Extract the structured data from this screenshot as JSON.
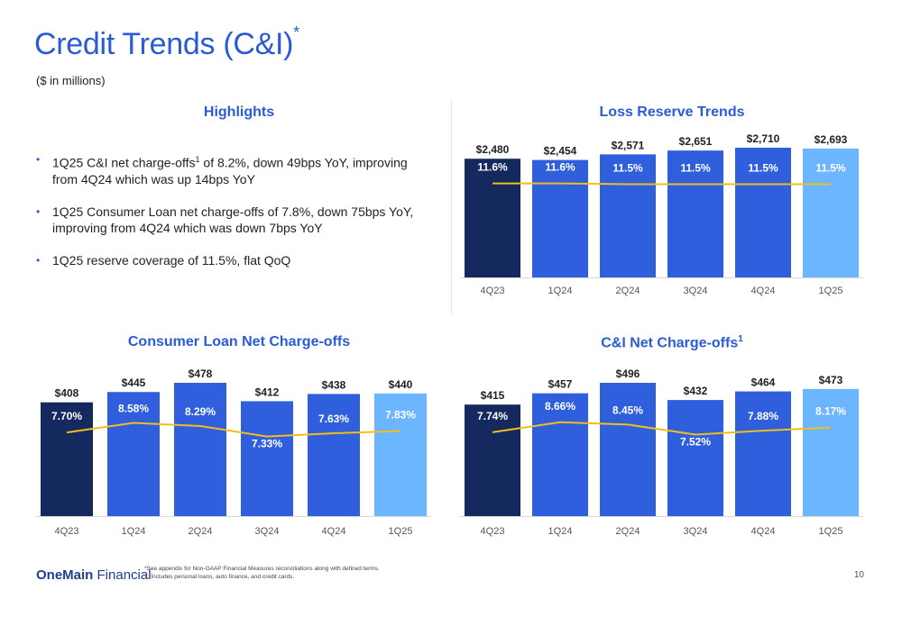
{
  "header": {
    "title": "Credit Trends (C&I)",
    "title_sup": "*",
    "subtitle": "($ in millions)"
  },
  "highlights": {
    "heading": "Highlights",
    "items": [
      {
        "pre": "1Q25 C&I net charge-offs",
        "sup": "1",
        "post": " of 8.2%, down 49bps YoY, improving from 4Q24 which was up 14bps YoY"
      },
      {
        "pre": "1Q25 Consumer Loan net charge-offs of 7.8%, down 75bps YoY, improving from 4Q24 which was down 7bps YoY",
        "sup": "",
        "post": ""
      },
      {
        "pre": "1Q25 reserve coverage of 11.5%, flat QoQ",
        "sup": "",
        "post": ""
      }
    ]
  },
  "colors": {
    "accent": "#2a5bd7",
    "bar_dark": "#14295e",
    "bar_mid": "#2f5fdc",
    "bar_light": "#6cb6ff",
    "line": "#f2be1a"
  },
  "chart_data": [
    {
      "id": "loss-reserve",
      "type": "bar",
      "title": "Loss Reserve Trends",
      "title_sup": "",
      "categories": [
        "4Q23",
        "1Q24",
        "2Q24",
        "3Q24",
        "4Q24",
        "1Q25"
      ],
      "values": [
        2480,
        2454,
        2571,
        2651,
        2710,
        2693
      ],
      "value_labels": [
        "$2,480",
        "$2,454",
        "$2,571",
        "$2,651",
        "$2,710",
        "$2,693"
      ],
      "ylim": [
        0,
        2710
      ],
      "line_series": {
        "values": [
          11.6,
          11.6,
          11.5,
          11.5,
          11.5,
          11.5
        ],
        "labels": [
          "11.6%",
          "11.6%",
          "11.5%",
          "11.5%",
          "11.5%",
          "11.5%"
        ],
        "ylim": [
          0,
          16
        ]
      }
    },
    {
      "id": "consumer-loan",
      "type": "bar",
      "title": "Consumer Loan Net Charge-offs",
      "title_sup": "",
      "categories": [
        "4Q23",
        "1Q24",
        "2Q24",
        "3Q24",
        "4Q24",
        "1Q25"
      ],
      "values": [
        408,
        445,
        478,
        412,
        438,
        440
      ],
      "value_labels": [
        "$408",
        "$445",
        "$478",
        "$412",
        "$438",
        "$440"
      ],
      "ylim": [
        0,
        478
      ],
      "line_series": {
        "values": [
          7.7,
          8.58,
          8.29,
          7.33,
          7.63,
          7.83
        ],
        "labels": [
          "7.70%",
          "8.58%",
          "8.29%",
          "7.33%",
          "7.63%",
          "7.83%"
        ],
        "ylim": [
          0,
          12.27
        ]
      }
    },
    {
      "id": "ci-net",
      "type": "bar",
      "title": "C&I Net Charge-offs",
      "title_sup": "1",
      "categories": [
        "4Q23",
        "1Q24",
        "2Q24",
        "3Q24",
        "4Q24",
        "1Q25"
      ],
      "values": [
        415,
        457,
        496,
        432,
        464,
        473
      ],
      "value_labels": [
        "$415",
        "$457",
        "$496",
        "$432",
        "$464",
        "$473"
      ],
      "ylim": [
        0,
        496
      ],
      "line_series": {
        "values": [
          7.74,
          8.66,
          8.45,
          7.52,
          7.88,
          8.17
        ],
        "labels": [
          "7.74%",
          "8.66%",
          "8.45%",
          "7.52%",
          "7.88%",
          "8.17%"
        ],
        "ylim": [
          0,
          12.3
        ]
      }
    }
  ],
  "footer": {
    "logo_bold": "OneMain",
    "logo_regular": " Financial",
    "logo_dot": ".",
    "footnote_1": "*See appendix for Non-GAAP Financial Measures reconciliations along with defined terms.",
    "footnote_2": "1. Includes personal loans, auto finance, and credit cards.",
    "page_number": "10"
  }
}
